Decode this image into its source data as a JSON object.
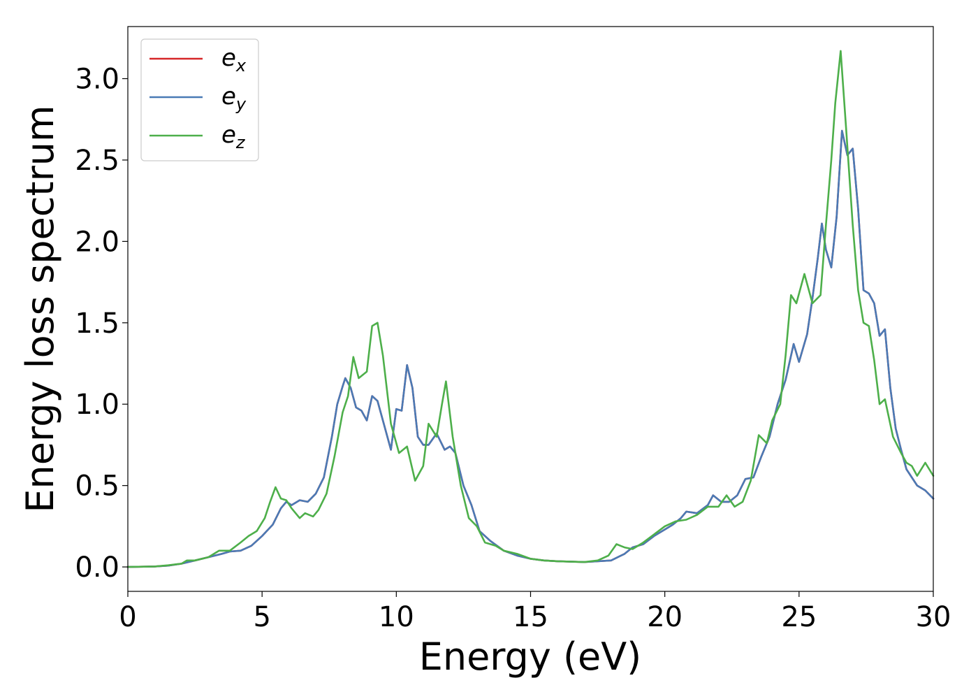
{
  "chart_data": {
    "type": "line",
    "title": "",
    "xlabel": "Energy (eV)",
    "ylabel": "Energy loss spectrum",
    "xlim": [
      0,
      30
    ],
    "ylim": [
      -0.15,
      3.32
    ],
    "xticks": [
      0,
      5,
      10,
      15,
      20,
      25,
      30
    ],
    "xtick_labels": [
      "0",
      "5",
      "10",
      "15",
      "20",
      "25",
      "30"
    ],
    "yticks": [
      0.0,
      0.5,
      1.0,
      1.5,
      2.0,
      2.5,
      3.0
    ],
    "ytick_labels": [
      "0.0",
      "0.5",
      "1.0",
      "1.5",
      "2.0",
      "2.5",
      "3.0"
    ],
    "grid": false,
    "legend_position": "top-left",
    "series": [
      {
        "name": "e_x",
        "label_base": "e",
        "label_sub": "x",
        "color": "#d62728",
        "points": [
          [
            0,
            0.0
          ],
          [
            1,
            0.003
          ],
          [
            1.5,
            0.008
          ],
          [
            2,
            0.02
          ],
          [
            2.5,
            0.04
          ],
          [
            3,
            0.06
          ],
          [
            3.5,
            0.08
          ],
          [
            3.8,
            0.095
          ],
          [
            4.2,
            0.1
          ],
          [
            4.6,
            0.13
          ],
          [
            5,
            0.19
          ],
          [
            5.4,
            0.26
          ],
          [
            5.7,
            0.36
          ],
          [
            5.9,
            0.4
          ],
          [
            6.1,
            0.38
          ],
          [
            6.4,
            0.41
          ],
          [
            6.7,
            0.4
          ],
          [
            7,
            0.45
          ],
          [
            7.3,
            0.55
          ],
          [
            7.6,
            0.8
          ],
          [
            7.8,
            1.0
          ],
          [
            8,
            1.11
          ],
          [
            8.1,
            1.16
          ],
          [
            8.3,
            1.1
          ],
          [
            8.5,
            0.98
          ],
          [
            8.7,
            0.96
          ],
          [
            8.9,
            0.9
          ],
          [
            9.1,
            1.05
          ],
          [
            9.3,
            1.02
          ],
          [
            9.5,
            0.9
          ],
          [
            9.8,
            0.72
          ],
          [
            10,
            0.97
          ],
          [
            10.2,
            0.96
          ],
          [
            10.4,
            1.24
          ],
          [
            10.6,
            1.1
          ],
          [
            10.8,
            0.8
          ],
          [
            11,
            0.75
          ],
          [
            11.2,
            0.75
          ],
          [
            11.5,
            0.82
          ],
          [
            11.8,
            0.72
          ],
          [
            12,
            0.74
          ],
          [
            12.2,
            0.7
          ],
          [
            12.5,
            0.5
          ],
          [
            12.8,
            0.38
          ],
          [
            13.1,
            0.22
          ],
          [
            13.5,
            0.16
          ],
          [
            14,
            0.1
          ],
          [
            14.5,
            0.07
          ],
          [
            15,
            0.05
          ],
          [
            15.5,
            0.04
          ],
          [
            16,
            0.035
          ],
          [
            17,
            0.03
          ],
          [
            18,
            0.04
          ],
          [
            18.5,
            0.08
          ],
          [
            18.8,
            0.12
          ],
          [
            19.2,
            0.14
          ],
          [
            19.6,
            0.19
          ],
          [
            20,
            0.23
          ],
          [
            20.3,
            0.26
          ],
          [
            20.6,
            0.3
          ],
          [
            20.8,
            0.34
          ],
          [
            21.2,
            0.33
          ],
          [
            21.6,
            0.38
          ],
          [
            21.8,
            0.44
          ],
          [
            22.1,
            0.4
          ],
          [
            22.4,
            0.4
          ],
          [
            22.7,
            0.44
          ],
          [
            23,
            0.54
          ],
          [
            23.3,
            0.55
          ],
          [
            23.6,
            0.68
          ],
          [
            23.9,
            0.8
          ],
          [
            24.2,
            1.0
          ],
          [
            24.5,
            1.15
          ],
          [
            24.8,
            1.37
          ],
          [
            25,
            1.26
          ],
          [
            25.3,
            1.43
          ],
          [
            25.5,
            1.65
          ],
          [
            25.7,
            1.9
          ],
          [
            25.85,
            2.11
          ],
          [
            26,
            1.95
          ],
          [
            26.2,
            1.84
          ],
          [
            26.4,
            2.15
          ],
          [
            26.6,
            2.68
          ],
          [
            26.8,
            2.53
          ],
          [
            27,
            2.57
          ],
          [
            27.2,
            2.2
          ],
          [
            27.4,
            1.7
          ],
          [
            27.6,
            1.68
          ],
          [
            27.8,
            1.62
          ],
          [
            28,
            1.42
          ],
          [
            28.2,
            1.46
          ],
          [
            28.4,
            1.1
          ],
          [
            28.6,
            0.85
          ],
          [
            28.8,
            0.72
          ],
          [
            29,
            0.6
          ],
          [
            29.4,
            0.5
          ],
          [
            29.7,
            0.47
          ],
          [
            30,
            0.42
          ]
        ]
      },
      {
        "name": "e_y",
        "label_base": "e",
        "label_sub": "y",
        "color": "#4a7ab5",
        "points": [
          [
            0,
            0.0
          ],
          [
            1,
            0.003
          ],
          [
            1.5,
            0.008
          ],
          [
            2,
            0.02
          ],
          [
            2.5,
            0.04
          ],
          [
            3,
            0.06
          ],
          [
            3.5,
            0.08
          ],
          [
            3.8,
            0.095
          ],
          [
            4.2,
            0.1
          ],
          [
            4.6,
            0.13
          ],
          [
            5,
            0.19
          ],
          [
            5.4,
            0.26
          ],
          [
            5.7,
            0.36
          ],
          [
            5.9,
            0.4
          ],
          [
            6.1,
            0.38
          ],
          [
            6.4,
            0.41
          ],
          [
            6.7,
            0.4
          ],
          [
            7,
            0.45
          ],
          [
            7.3,
            0.55
          ],
          [
            7.6,
            0.8
          ],
          [
            7.8,
            1.0
          ],
          [
            8,
            1.11
          ],
          [
            8.1,
            1.16
          ],
          [
            8.3,
            1.1
          ],
          [
            8.5,
            0.98
          ],
          [
            8.7,
            0.96
          ],
          [
            8.9,
            0.9
          ],
          [
            9.1,
            1.05
          ],
          [
            9.3,
            1.02
          ],
          [
            9.5,
            0.9
          ],
          [
            9.8,
            0.72
          ],
          [
            10,
            0.97
          ],
          [
            10.2,
            0.96
          ],
          [
            10.4,
            1.24
          ],
          [
            10.6,
            1.1
          ],
          [
            10.8,
            0.8
          ],
          [
            11,
            0.75
          ],
          [
            11.2,
            0.75
          ],
          [
            11.5,
            0.82
          ],
          [
            11.8,
            0.72
          ],
          [
            12,
            0.74
          ],
          [
            12.2,
            0.7
          ],
          [
            12.5,
            0.5
          ],
          [
            12.8,
            0.38
          ],
          [
            13.1,
            0.22
          ],
          [
            13.5,
            0.16
          ],
          [
            14,
            0.1
          ],
          [
            14.5,
            0.07
          ],
          [
            15,
            0.05
          ],
          [
            15.5,
            0.04
          ],
          [
            16,
            0.035
          ],
          [
            17,
            0.03
          ],
          [
            18,
            0.04
          ],
          [
            18.5,
            0.08
          ],
          [
            18.8,
            0.12
          ],
          [
            19.2,
            0.14
          ],
          [
            19.6,
            0.19
          ],
          [
            20,
            0.23
          ],
          [
            20.3,
            0.26
          ],
          [
            20.6,
            0.3
          ],
          [
            20.8,
            0.34
          ],
          [
            21.2,
            0.33
          ],
          [
            21.6,
            0.38
          ],
          [
            21.8,
            0.44
          ],
          [
            22.1,
            0.4
          ],
          [
            22.4,
            0.4
          ],
          [
            22.7,
            0.44
          ],
          [
            23,
            0.54
          ],
          [
            23.3,
            0.55
          ],
          [
            23.6,
            0.68
          ],
          [
            23.9,
            0.8
          ],
          [
            24.2,
            1.0
          ],
          [
            24.5,
            1.15
          ],
          [
            24.8,
            1.37
          ],
          [
            25,
            1.26
          ],
          [
            25.3,
            1.43
          ],
          [
            25.5,
            1.65
          ],
          [
            25.7,
            1.9
          ],
          [
            25.85,
            2.11
          ],
          [
            26,
            1.95
          ],
          [
            26.2,
            1.84
          ],
          [
            26.4,
            2.15
          ],
          [
            26.6,
            2.68
          ],
          [
            26.8,
            2.53
          ],
          [
            27,
            2.57
          ],
          [
            27.2,
            2.2
          ],
          [
            27.4,
            1.7
          ],
          [
            27.6,
            1.68
          ],
          [
            27.8,
            1.62
          ],
          [
            28,
            1.42
          ],
          [
            28.2,
            1.46
          ],
          [
            28.4,
            1.1
          ],
          [
            28.6,
            0.85
          ],
          [
            28.8,
            0.72
          ],
          [
            29,
            0.6
          ],
          [
            29.4,
            0.5
          ],
          [
            29.7,
            0.47
          ],
          [
            30,
            0.42
          ]
        ]
      },
      {
        "name": "e_z",
        "label_base": "e",
        "label_sub": "z",
        "color": "#4daf4a",
        "points": [
          [
            0,
            0.0
          ],
          [
            1,
            0.003
          ],
          [
            1.5,
            0.01
          ],
          [
            2,
            0.02
          ],
          [
            2.2,
            0.04
          ],
          [
            2.5,
            0.04
          ],
          [
            3,
            0.06
          ],
          [
            3.4,
            0.1
          ],
          [
            3.8,
            0.1
          ],
          [
            4.2,
            0.15
          ],
          [
            4.5,
            0.19
          ],
          [
            4.8,
            0.22
          ],
          [
            5.1,
            0.3
          ],
          [
            5.3,
            0.4
          ],
          [
            5.5,
            0.49
          ],
          [
            5.7,
            0.42
          ],
          [
            5.9,
            0.41
          ],
          [
            6.1,
            0.36
          ],
          [
            6.4,
            0.3
          ],
          [
            6.6,
            0.33
          ],
          [
            6.9,
            0.31
          ],
          [
            7.1,
            0.35
          ],
          [
            7.4,
            0.45
          ],
          [
            7.7,
            0.68
          ],
          [
            8,
            0.95
          ],
          [
            8.2,
            1.05
          ],
          [
            8.4,
            1.29
          ],
          [
            8.6,
            1.16
          ],
          [
            8.9,
            1.2
          ],
          [
            9.1,
            1.48
          ],
          [
            9.3,
            1.5
          ],
          [
            9.5,
            1.3
          ],
          [
            9.8,
            0.88
          ],
          [
            10.1,
            0.7
          ],
          [
            10.4,
            0.74
          ],
          [
            10.7,
            0.53
          ],
          [
            11,
            0.62
          ],
          [
            11.2,
            0.88
          ],
          [
            11.5,
            0.8
          ],
          [
            11.7,
            1.0
          ],
          [
            11.85,
            1.14
          ],
          [
            12.1,
            0.8
          ],
          [
            12.4,
            0.5
          ],
          [
            12.7,
            0.3
          ],
          [
            13,
            0.25
          ],
          [
            13.3,
            0.15
          ],
          [
            13.7,
            0.13
          ],
          [
            14,
            0.1
          ],
          [
            14.5,
            0.08
          ],
          [
            15,
            0.05
          ],
          [
            15.5,
            0.04
          ],
          [
            16,
            0.035
          ],
          [
            17,
            0.03
          ],
          [
            17.5,
            0.04
          ],
          [
            17.9,
            0.07
          ],
          [
            18.2,
            0.14
          ],
          [
            18.5,
            0.12
          ],
          [
            18.8,
            0.11
          ],
          [
            19.2,
            0.15
          ],
          [
            19.6,
            0.2
          ],
          [
            20,
            0.25
          ],
          [
            20.4,
            0.28
          ],
          [
            20.8,
            0.29
          ],
          [
            21.2,
            0.32
          ],
          [
            21.6,
            0.37
          ],
          [
            22,
            0.37
          ],
          [
            22.3,
            0.44
          ],
          [
            22.6,
            0.37
          ],
          [
            22.9,
            0.4
          ],
          [
            23.2,
            0.53
          ],
          [
            23.5,
            0.81
          ],
          [
            23.8,
            0.76
          ],
          [
            24,
            0.9
          ],
          [
            24.3,
            1.0
          ],
          [
            24.5,
            1.3
          ],
          [
            24.7,
            1.67
          ],
          [
            24.9,
            1.62
          ],
          [
            25.2,
            1.8
          ],
          [
            25.5,
            1.62
          ],
          [
            25.8,
            1.67
          ],
          [
            26,
            2.1
          ],
          [
            26.2,
            2.5
          ],
          [
            26.35,
            2.85
          ],
          [
            26.55,
            3.17
          ],
          [
            26.75,
            2.7
          ],
          [
            27,
            2.1
          ],
          [
            27.2,
            1.7
          ],
          [
            27.4,
            1.5
          ],
          [
            27.6,
            1.48
          ],
          [
            27.8,
            1.27
          ],
          [
            28,
            1.0
          ],
          [
            28.2,
            1.03
          ],
          [
            28.5,
            0.8
          ],
          [
            28.8,
            0.7
          ],
          [
            29,
            0.64
          ],
          [
            29.2,
            0.62
          ],
          [
            29.4,
            0.56
          ],
          [
            29.7,
            0.64
          ],
          [
            30,
            0.56
          ]
        ]
      }
    ]
  }
}
